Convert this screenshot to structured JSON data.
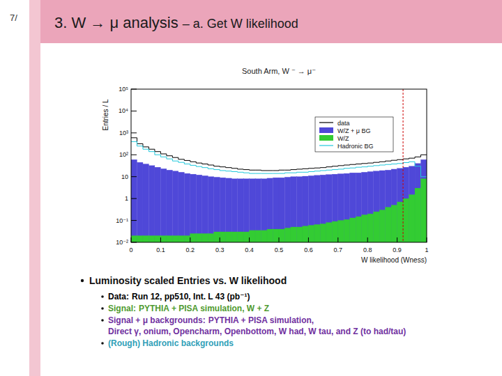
{
  "slide": {
    "number": "7/",
    "title": "3. W → μ analysis",
    "subtitle": "– a. Get W likelihood",
    "heading": "Luminosity scaled Entries vs. W likelihood",
    "bullets": [
      {
        "label": "Data:",
        "lines": [
          "Run 12, pp510, Int. L 43 (pb⁻¹)"
        ],
        "color": "#000000"
      },
      {
        "label": "Signal:",
        "lines": [
          "PYTHIA + PISA simulation, W + Z"
        ],
        "color": "#4f9a2f"
      },
      {
        "label": "Signal + μ backgrounds:",
        "lines": [
          "PYTHIA + PISA simulation,",
          "Direct γ, onium, Opencharm, Openbottom, W had, W tau, and Z (to had/tau)"
        ],
        "color": "#7030a0"
      },
      {
        "label": "(Rough) Hadronic backgrounds",
        "lines": [],
        "color": "#31a0b8"
      }
    ]
  },
  "chart_data": {
    "type": "histogram",
    "title": "South Arm, W ⁻ → μ⁻",
    "x_label": "W likelihood (Wness)",
    "y_label": "Entries / L",
    "log": "y",
    "legend": "top-right",
    "grid": false,
    "xlim": [
      0,
      1
    ],
    "ylim": [
      0.01,
      100000
    ],
    "xticks": [
      0,
      0.1,
      0.2,
      0.3,
      0.4,
      0.5,
      0.6,
      0.7,
      0.8,
      0.9,
      1
    ],
    "yticks": [
      {
        "value": 0.01,
        "label": "10⁻²"
      },
      {
        "value": 0.1,
        "label": "10⁻¹"
      },
      1,
      10,
      {
        "value": 100,
        "label": "10²"
      },
      {
        "value": 1000,
        "label": "10³"
      },
      {
        "value": 10000,
        "label": "10⁴"
      },
      {
        "value": 100000,
        "label": "10⁵"
      }
    ],
    "cut": 0.92,
    "bins": [
      0,
      0.02,
      0.04,
      0.06,
      0.08,
      0.1,
      0.12,
      0.14,
      0.16,
      0.18,
      0.2,
      0.22,
      0.24,
      0.26,
      0.28,
      0.3,
      0.32,
      0.34,
      0.36,
      0.38,
      0.4,
      0.42,
      0.44,
      0.46,
      0.48,
      0.5,
      0.52,
      0.54,
      0.56,
      0.58,
      0.6,
      0.62,
      0.64,
      0.66,
      0.68,
      0.7,
      0.72,
      0.74,
      0.76,
      0.78,
      0.8,
      0.82,
      0.84,
      0.86,
      0.88,
      0.9,
      0.92,
      0.94,
      0.96,
      0.98,
      1
    ],
    "series": [
      {
        "name": "data",
        "type": "line",
        "color": "#000000",
        "values": [
          600,
          320,
          230,
          180,
          140,
          110,
          90,
          75,
          62,
          55,
          48,
          42,
          38,
          34,
          30,
          28,
          26,
          24,
          22,
          21,
          20,
          20,
          19,
          19,
          19,
          20,
          20,
          21,
          22,
          23,
          24,
          25,
          26,
          28,
          30,
          32,
          34,
          36,
          38,
          40,
          42,
          45,
          48,
          52,
          56,
          60,
          65,
          70,
          80,
          100
        ]
      },
      {
        "name": "W/Z + μ BG",
        "type": "bar",
        "color": "#4f48d8",
        "values": [
          60,
          45,
          38,
          32,
          27,
          23,
          20,
          18,
          16,
          14,
          13,
          12,
          11,
          10,
          9.5,
          9,
          8.5,
          8,
          8,
          8,
          8,
          8,
          8,
          8.5,
          9,
          9,
          9.5,
          10,
          10,
          10.5,
          11,
          11.5,
          12,
          12.5,
          13,
          13.5,
          14,
          15,
          15,
          16,
          17,
          18,
          19,
          20,
          22,
          24,
          27,
          30,
          40,
          60
        ]
      },
      {
        "name": "W/Z",
        "type": "bar",
        "color": "#33cc33",
        "values": [
          0.02,
          0.02,
          0.02,
          0.02,
          0.02,
          0.02,
          0.02,
          0.02,
          0.02,
          0.02,
          0.025,
          0.025,
          0.025,
          0.025,
          0.03,
          0.03,
          0.03,
          0.03,
          0.03,
          0.03,
          0.035,
          0.035,
          0.035,
          0.04,
          0.04,
          0.04,
          0.045,
          0.05,
          0.05,
          0.055,
          0.06,
          0.065,
          0.07,
          0.08,
          0.09,
          0.1,
          0.11,
          0.13,
          0.15,
          0.18,
          0.2,
          0.25,
          0.3,
          0.4,
          0.5,
          0.7,
          1,
          1.5,
          3,
          8
        ]
      },
      {
        "name": "Hadronic BG",
        "type": "line",
        "color": "#22c8dc",
        "values": [
          400,
          250,
          180,
          140,
          100,
          80,
          65,
          52,
          45,
          38,
          33,
          29,
          26,
          23,
          21,
          19,
          18,
          17,
          16,
          15,
          14,
          14,
          14,
          14,
          14,
          14,
          15,
          15,
          16,
          16,
          17,
          18,
          19,
          20,
          21,
          22,
          24,
          25,
          27,
          28,
          30,
          32,
          34,
          36,
          38,
          40,
          44,
          48,
          30,
          10
        ]
      }
    ]
  }
}
